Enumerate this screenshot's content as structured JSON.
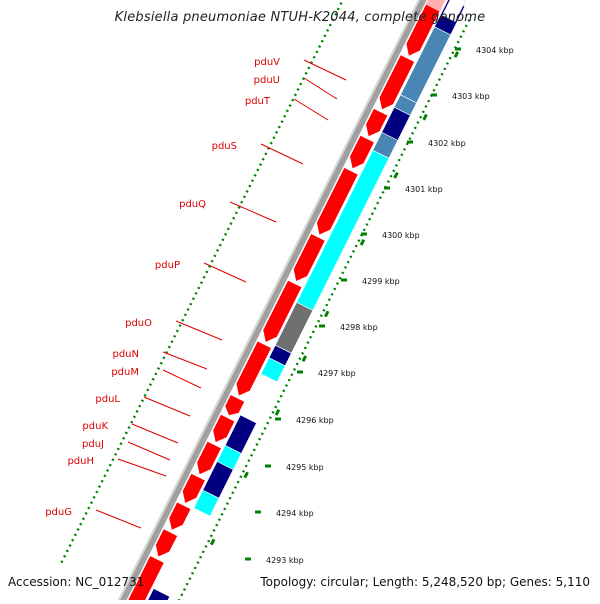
{
  "title": "Klebsiella pneumoniae NTUH-K2044, complete genome",
  "accession": "Accession: NC_012731",
  "summary": "Topology: circular; Length: 5,248,520 bp; Genes: 5,110",
  "colors": {
    "cds": "#ff0000",
    "cyan": "#00ffff",
    "dark_blue": "#000080",
    "steel_blue": "#4a86b4",
    "gray": "#707070",
    "backbone": "#a0a0a0",
    "label": "#dd0000",
    "dots": "#008000",
    "ticks": "#008000"
  },
  "ticks": [
    {
      "label": "4293 kbp"
    },
    {
      "label": "4294 kbp"
    },
    {
      "label": "4295 kbp"
    },
    {
      "label": "4296 kbp"
    },
    {
      "label": "4297 kbp"
    },
    {
      "label": "4298 kbp"
    },
    {
      "label": "4299 kbp"
    },
    {
      "label": "4300 kbp"
    },
    {
      "label": "4301 kbp"
    },
    {
      "label": "4302 kbp"
    },
    {
      "label": "4303 kbp"
    },
    {
      "label": "4304 kbp"
    }
  ],
  "gene_labels": [
    {
      "name": "pduV"
    },
    {
      "name": "pduU"
    },
    {
      "name": "pduT"
    },
    {
      "name": "pduS"
    },
    {
      "name": "pduQ"
    },
    {
      "name": "pduP"
    },
    {
      "name": "pduO"
    },
    {
      "name": "pduN"
    },
    {
      "name": "pduM"
    },
    {
      "name": "pduL"
    },
    {
      "name": "pduK"
    },
    {
      "name": "pduJ"
    },
    {
      "name": "pduH"
    },
    {
      "name": "pduG"
    }
  ]
}
